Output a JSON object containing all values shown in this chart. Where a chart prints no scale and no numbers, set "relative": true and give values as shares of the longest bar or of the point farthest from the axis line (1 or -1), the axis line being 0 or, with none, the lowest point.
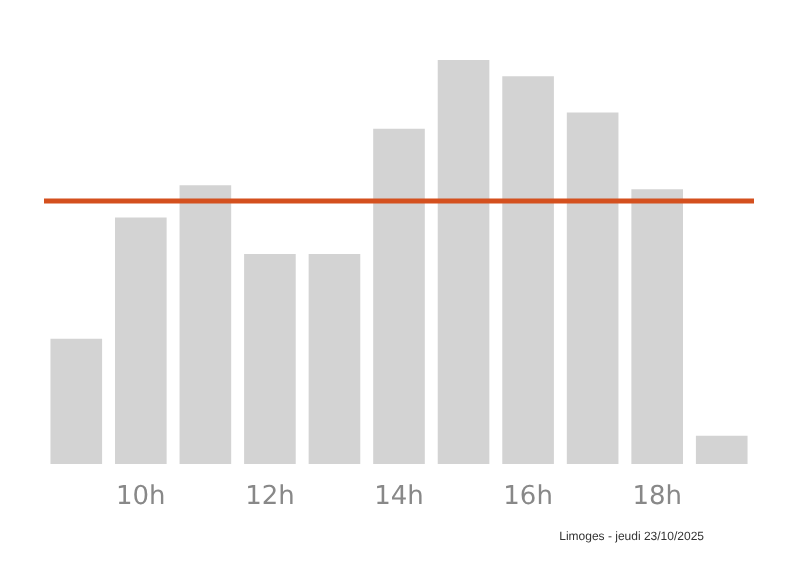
{
  "chart_data": {
    "type": "bar",
    "relative": true,
    "categories": [
      null,
      "10h",
      null,
      "12h",
      null,
      "14h",
      null,
      "16h",
      null,
      "18h",
      null
    ],
    "values": [
      0.31,
      0.61,
      0.69,
      0.52,
      0.52,
      0.83,
      1,
      0.96,
      0.87,
      0.68,
      0.07
    ],
    "color": "#d3d3d3",
    "ref_lines": [
      {
        "axis": "y",
        "value": 0.65,
        "color": "#d4501e"
      }
    ],
    "annotations": [
      "Limoges - jeudi 23/10/2025"
    ]
  }
}
